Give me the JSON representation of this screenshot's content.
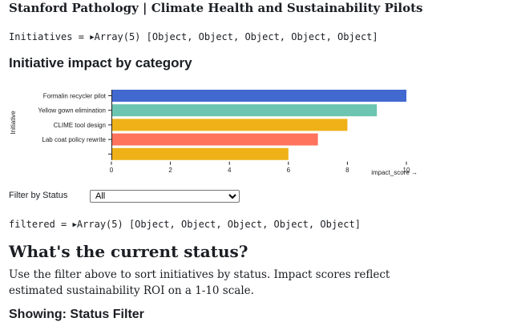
{
  "page": {
    "title": "Stanford Pathology | Climate Health and Sustainability Pilots"
  },
  "initiatives_inspector": {
    "name": "Initiatives",
    "summary": "Array(5) [Object, Object, Object, Object, Object]"
  },
  "chart_heading": "Initiative impact by category",
  "chart_data": {
    "type": "bar",
    "orientation": "horizontal",
    "ylabel": "Initiative",
    "xlabel": "impact_score →",
    "categories": [
      "Formalin recycler pilot",
      "Yellow gown elimination",
      "CLIME tool design",
      "Lab coat policy rewrite",
      ""
    ],
    "values": [
      10,
      9,
      8,
      7,
      6
    ],
    "colors": [
      "#4269d0",
      "#6cc5b0",
      "#efb118",
      "#ff725c",
      "#efb118"
    ],
    "xlim": [
      0,
      10
    ],
    "xticks": [
      "0",
      "2",
      "4",
      "6",
      "8",
      "10"
    ],
    "grid": false,
    "legend": "none"
  },
  "filter": {
    "label": "Filter by Status",
    "selected": "All",
    "options": [
      "All"
    ]
  },
  "filtered_inspector": {
    "name": "filtered",
    "summary": "Array(5) [Object, Object, Object, Object, Object]"
  },
  "status_section": {
    "heading": "What's the current status?",
    "description": "Use the filter above to sort initiatives by status. Impact scores reflect estimated sustainability ROI on a 1-10 scale."
  },
  "showing_heading": "Showing: Status Filter"
}
